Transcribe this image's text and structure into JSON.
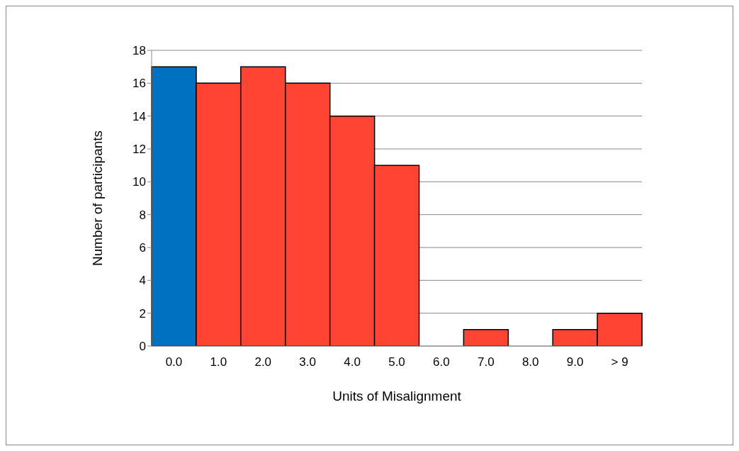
{
  "chart_data": {
    "type": "bar",
    "xlabel": "Units of Misalignment",
    "ylabel": "Number of participants",
    "categories": [
      "0.0",
      "1.0",
      "2.0",
      "3.0",
      "4.0",
      "5.0",
      "6.0",
      "7.0",
      "8.0",
      "9.0",
      "> 9"
    ],
    "values": [
      17,
      16,
      17,
      16,
      14,
      11,
      0,
      1,
      0,
      1,
      2
    ],
    "colors": [
      "#0070c0",
      "#ff4433",
      "#ff4433",
      "#ff4433",
      "#ff4433",
      "#ff4433",
      "#ff4433",
      "#ff4433",
      "#ff4433",
      "#ff4433",
      "#ff4433"
    ],
    "ylim": [
      0,
      18
    ],
    "yticks": [
      0,
      2,
      4,
      6,
      8,
      10,
      12,
      14,
      16,
      18
    ],
    "grid": "y",
    "legend": false
  }
}
